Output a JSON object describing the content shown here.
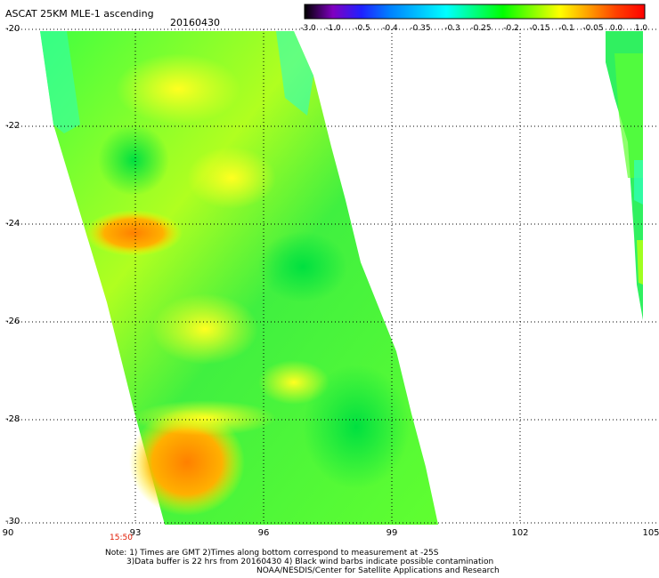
{
  "title": "ASCAT 25KM MLE-1 ascending",
  "date": "20160430",
  "colorbar": {
    "labels": [
      "-3.0",
      "-1.0",
      "-0.5",
      "-0.4",
      "-0.35",
      "-0.3",
      "-0.25",
      "-0.2",
      "-0.15",
      "-0.1",
      "-0.05",
      "0.0",
      "1.0"
    ],
    "colors": [
      "#000000",
      "#8000c0",
      "#2020ff",
      "#0080ff",
      "#00c0ff",
      "#00ffff",
      "#00ff80",
      "#00ff00",
      "#80ff00",
      "#ffff00",
      "#ffa000",
      "#ff4000",
      "#ff0000"
    ]
  },
  "axes": {
    "lat_labels": [
      "-20",
      "-22",
      "-24",
      "-26",
      "-28",
      "-30"
    ],
    "lon_labels": [
      "90",
      "93",
      "96",
      "99",
      "102",
      "105"
    ],
    "lat_range": [
      -30,
      -20
    ],
    "lon_range": [
      90,
      105
    ]
  },
  "time_label": "15:50",
  "notes": [
    "Note: 1) Times are GMT 2)Times along bottom correspond to measurement at -25S",
    "3)Data buffer is 22 hrs from 20160430 4) Black wind barbs indicate possible contamination",
    "NOAA/NESDIS/Center for Satellite Applications and Research"
  ]
}
